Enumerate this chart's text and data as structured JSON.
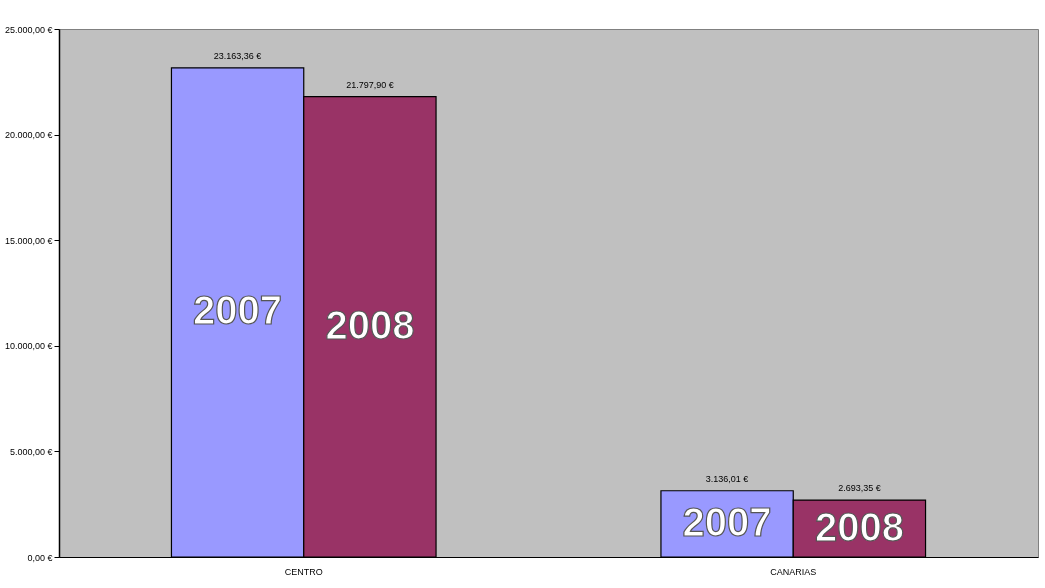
{
  "chart_data": {
    "type": "bar",
    "categories": [
      "CENTRO",
      "CANARIAS"
    ],
    "series": [
      {
        "name": "2007",
        "color": "#9999ff",
        "values": [
          23163.36,
          3136.01
        ],
        "value_labels": [
          "23.163,36 €",
          "3.136,01 €"
        ]
      },
      {
        "name": "2008",
        "color": "#993366",
        "values": [
          21797.9,
          2693.35
        ],
        "value_labels": [
          "21.797,90 €",
          "2.693,35 €"
        ]
      }
    ],
    "ylim": [
      0,
      25000
    ],
    "yticks": [
      {
        "value": 0,
        "label": "0,00 €"
      },
      {
        "value": 5000,
        "label": "5.000,00 €"
      },
      {
        "value": 10000,
        "label": "10.000,00 €"
      },
      {
        "value": 15000,
        "label": "15.000,00 €"
      },
      {
        "value": 20000,
        "label": "20.000,00 €"
      },
      {
        "value": 25000,
        "label": "25.000,00 €"
      }
    ],
    "grid": false
  }
}
